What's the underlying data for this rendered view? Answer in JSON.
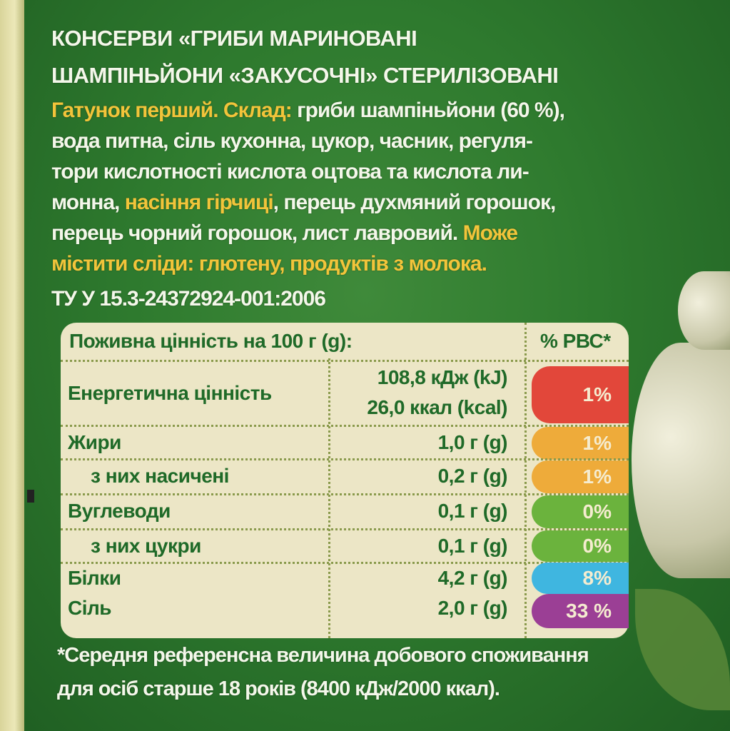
{
  "title": [
    "КОНСЕРВИ «ГРИБИ МАРИНОВАНІ",
    "ШАМПІНЬЙОНИ «ЗАКУСОЧНІ» СТЕРИЛІЗОВАНІ"
  ],
  "ingredients": {
    "l1a": "Гатунок перший. Склад:",
    "l1b": " гриби шампіньйони (60 %),",
    "l2": "вода питна, сіль кухонна, цукор, часник, регуля-",
    "l3": "тори кислотності кислота оцтова та кислота ли-",
    "l4a": "монна, ",
    "l4b": "насіння гірчиці",
    "l4c": ", перець духмяний горошок,",
    "l5a": "перець чорний горошок, лист лавровий. ",
    "l5b": "Може",
    "l6": "містити сліди: глютену, продуктів з молока."
  },
  "standard": "ТУ У 15.3-24372924-001:2006",
  "nutrition": {
    "header": "Поживна цінність на 100 г (g):",
    "rdi_header": "% РВС*",
    "rows": [
      {
        "name": "Енергетична цінність",
        "amount": "108,8 кДж (kJ)",
        "amount2": "26,0 ккал (kcal)",
        "rdi": "1%",
        "color": "#e2473a"
      },
      {
        "name": "Жири",
        "amount": "1,0 г (g)",
        "rdi": "1%",
        "color": "#eeab3a"
      },
      {
        "name": "з них насичені",
        "amount": "0,2 г (g)",
        "rdi": "1%",
        "color": "#eeab3a"
      },
      {
        "name": "Вуглеводи",
        "amount": "0,1 г (g)",
        "rdi": "0%",
        "color": "#6bb33d"
      },
      {
        "name": "з них цукри",
        "amount": "0,1 г (g)",
        "rdi": "0%",
        "color": "#6bb33d"
      },
      {
        "name": "Білки",
        "amount": "4,2 г (g)",
        "rdi": "8%",
        "color": "#3fb6e0"
      },
      {
        "name": "Сіль",
        "amount": "2,0 г (g)",
        "rdi": "33 %",
        "color": "#9b3f95"
      }
    ]
  },
  "footnote": [
    "*Середня референсна величина добового споживання",
    "для осіб старше 18 років (8400 кДж/2000 ккал)."
  ]
}
